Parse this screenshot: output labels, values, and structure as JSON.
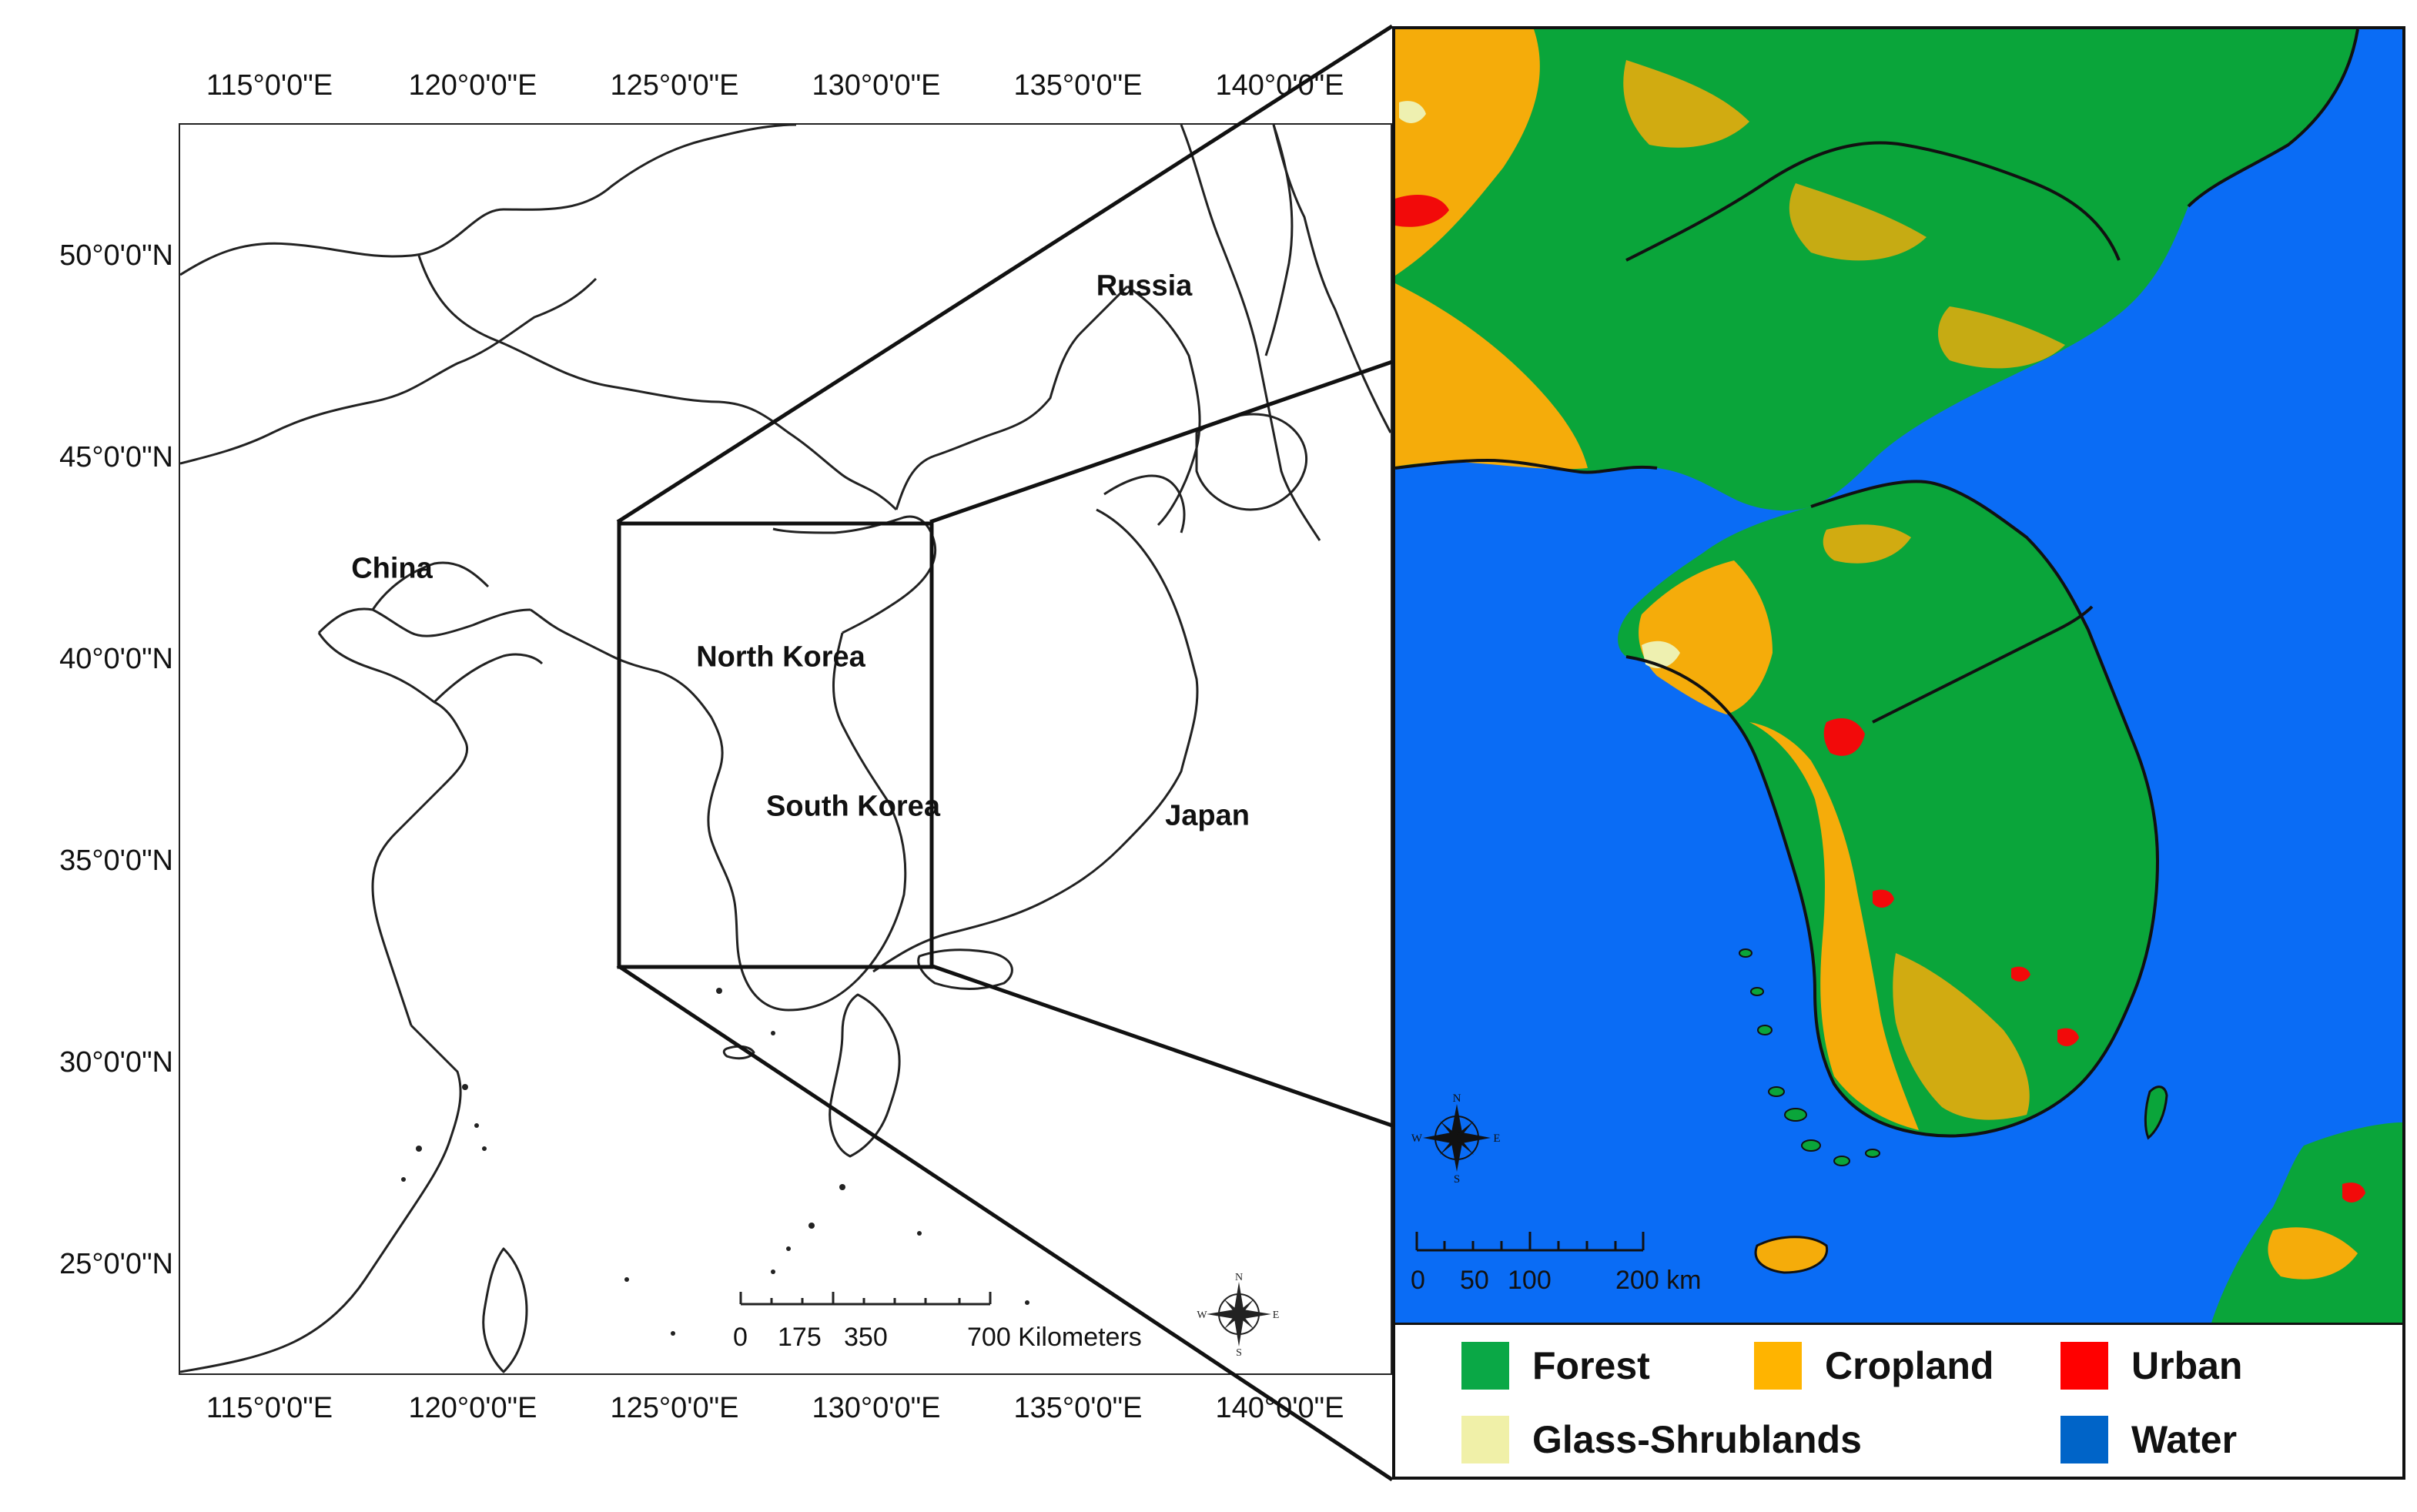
{
  "overview_map": {
    "lon_ticks": [
      "115°0'0\"E",
      "120°0'0\"E",
      "125°0'0\"E",
      "130°0'0\"E",
      "135°0'0\"E",
      "140°0'0\"E"
    ],
    "lat_ticks": [
      "50°0'0\"N",
      "45°0'0\"N",
      "40°0'0\"N",
      "35°0'0\"N",
      "30°0'0\"N",
      "25°0'0\"N"
    ],
    "countries": {
      "russia": "Russia",
      "china": "China",
      "north_korea": "North Korea",
      "south_korea": "South Korea",
      "japan": "Japan"
    },
    "scale_bar": {
      "labels": [
        "0",
        "175",
        "350",
        "700 Kilometers"
      ]
    },
    "compass": {
      "n": "N",
      "s": "S",
      "e": "E",
      "w": "W"
    }
  },
  "inset_map": {
    "scale_bar": {
      "labels": [
        "0",
        "50",
        "100",
        "200 km"
      ]
    },
    "compass": {
      "n": "N",
      "s": "S",
      "e": "E",
      "w": "W"
    },
    "colors": {
      "water": "#0a6cf5",
      "forest": "#0aa53a",
      "cropland": "#f5ac0a",
      "urban": "#f20a0a",
      "grass": "#eef0b0"
    }
  },
  "legend": {
    "items": [
      {
        "label": "Forest",
        "color": "#0aa846"
      },
      {
        "label": "Cropland",
        "color": "#ffb400"
      },
      {
        "label": "Urban",
        "color": "#ff0000"
      },
      {
        "label": "Glass-Shrublands",
        "color": "#f0f0a8"
      },
      {
        "label": "Water",
        "color": "#0064c8"
      }
    ]
  }
}
